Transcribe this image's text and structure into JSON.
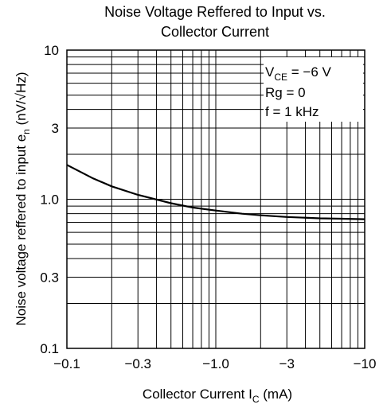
{
  "chart_data": {
    "type": "line",
    "title_lines": [
      "Noise Voltage Reffered to Input vs.",
      "Collector Current"
    ],
    "xlabel": {
      "main": "Collector Current  I",
      "sub": "C",
      "unit": "  (mA)"
    },
    "ylabel": {
      "main": "Noise voltage reffered to input  e",
      "sub": "n",
      "unit": "  (nV/√Hz)"
    },
    "x_scale": "log",
    "y_scale": "log",
    "xlim": [
      -0.1,
      -10
    ],
    "ylim": [
      0.1,
      10
    ],
    "x_ticks": [
      {
        "value": -0.1,
        "label": "−0.1"
      },
      {
        "value": -0.3,
        "label": "−0.3"
      },
      {
        "value": -1.0,
        "label": "−1.0"
      },
      {
        "value": -3,
        "label": "−3"
      },
      {
        "value": -10,
        "label": "−10"
      }
    ],
    "y_ticks": [
      {
        "value": 0.1,
        "label": "0.1"
      },
      {
        "value": 0.3,
        "label": "0.3"
      },
      {
        "value": 1.0,
        "label": "1.0"
      },
      {
        "value": 3,
        "label": "3"
      },
      {
        "value": 10,
        "label": "10"
      }
    ],
    "grid": true,
    "annotations": {
      "vce": {
        "main": "V",
        "sub": "CE",
        "rest": " = −6 V"
      },
      "rg": "Rg = 0",
      "f": "f = 1 kHz",
      "placement": "top-right"
    },
    "series": [
      {
        "x": [
          -0.1,
          -0.15,
          -0.2,
          -0.3,
          -0.5,
          -0.7,
          -1.0,
          -1.5,
          -2,
          -3,
          -5,
          -7,
          -10
        ],
        "y": [
          1.7,
          1.38,
          1.22,
          1.07,
          0.94,
          0.88,
          0.84,
          0.8,
          0.78,
          0.76,
          0.745,
          0.74,
          0.735
        ]
      }
    ]
  }
}
